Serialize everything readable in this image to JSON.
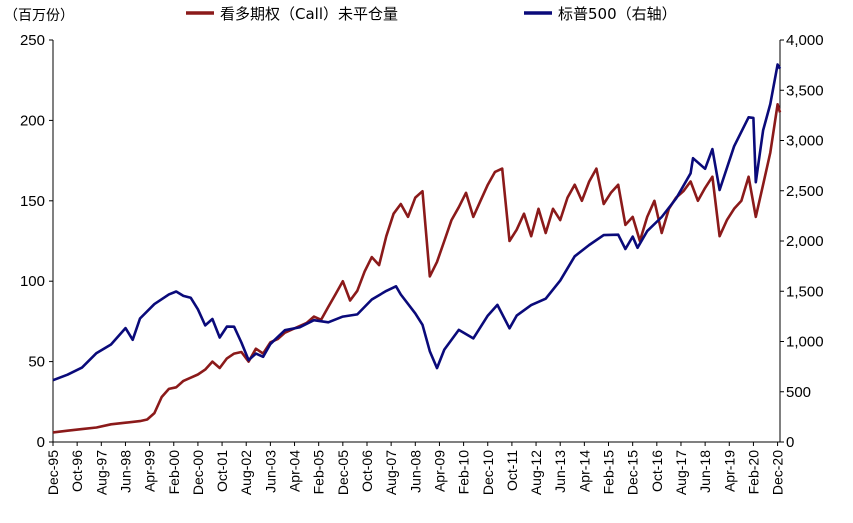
{
  "chart_data": {
    "type": "line",
    "unit_label": "（百万份）",
    "series": [
      {
        "name": "看多期权（Call）未平仓量",
        "axis": "left",
        "color": "#8B1A1A",
        "points": [
          [
            "1995-12",
            6
          ],
          [
            "1996-06",
            7
          ],
          [
            "1996-12",
            8
          ],
          [
            "1997-06",
            9
          ],
          [
            "1997-12",
            11
          ],
          [
            "1998-06",
            12
          ],
          [
            "1998-12",
            13
          ],
          [
            "1999-03",
            14
          ],
          [
            "1999-06",
            18
          ],
          [
            "1999-09",
            28
          ],
          [
            "1999-12",
            33
          ],
          [
            "2000-03",
            34
          ],
          [
            "2000-06",
            38
          ],
          [
            "2000-09",
            40
          ],
          [
            "2000-12",
            42
          ],
          [
            "2001-03",
            45
          ],
          [
            "2001-06",
            50
          ],
          [
            "2001-09",
            46
          ],
          [
            "2001-12",
            52
          ],
          [
            "2002-03",
            55
          ],
          [
            "2002-06",
            56
          ],
          [
            "2002-09",
            50
          ],
          [
            "2002-12",
            58
          ],
          [
            "2003-03",
            55
          ],
          [
            "2003-06",
            62
          ],
          [
            "2003-09",
            64
          ],
          [
            "2003-12",
            68
          ],
          [
            "2004-03",
            70
          ],
          [
            "2004-06",
            72
          ],
          [
            "2004-09",
            74
          ],
          [
            "2004-12",
            78
          ],
          [
            "2005-03",
            76
          ],
          [
            "2005-06",
            84
          ],
          [
            "2005-09",
            92
          ],
          [
            "2005-12",
            100
          ],
          [
            "2006-03",
            88
          ],
          [
            "2006-06",
            94
          ],
          [
            "2006-09",
            106
          ],
          [
            "2006-12",
            115
          ],
          [
            "2007-03",
            110
          ],
          [
            "2007-06",
            128
          ],
          [
            "2007-09",
            142
          ],
          [
            "2007-12",
            148
          ],
          [
            "2008-03",
            140
          ],
          [
            "2008-06",
            152
          ],
          [
            "2008-09",
            156
          ],
          [
            "2008-12",
            103
          ],
          [
            "2009-03",
            112
          ],
          [
            "2009-06",
            125
          ],
          [
            "2009-09",
            138
          ],
          [
            "2009-12",
            146
          ],
          [
            "2010-03",
            155
          ],
          [
            "2010-06",
            140
          ],
          [
            "2010-09",
            150
          ],
          [
            "2010-12",
            160
          ],
          [
            "2011-03",
            168
          ],
          [
            "2011-06",
            170
          ],
          [
            "2011-09",
            125
          ],
          [
            "2011-12",
            132
          ],
          [
            "2012-03",
            142
          ],
          [
            "2012-06",
            128
          ],
          [
            "2012-09",
            145
          ],
          [
            "2012-12",
            130
          ],
          [
            "2013-03",
            145
          ],
          [
            "2013-06",
            138
          ],
          [
            "2013-09",
            152
          ],
          [
            "2013-12",
            160
          ],
          [
            "2014-03",
            150
          ],
          [
            "2014-06",
            162
          ],
          [
            "2014-09",
            170
          ],
          [
            "2014-12",
            148
          ],
          [
            "2015-03",
            155
          ],
          [
            "2015-06",
            160
          ],
          [
            "2015-09",
            135
          ],
          [
            "2015-12",
            140
          ],
          [
            "2016-03",
            125
          ],
          [
            "2016-06",
            140
          ],
          [
            "2016-09",
            150
          ],
          [
            "2016-12",
            130
          ],
          [
            "2017-03",
            145
          ],
          [
            "2017-06",
            152
          ],
          [
            "2017-09",
            156
          ],
          [
            "2017-12",
            162
          ],
          [
            "2018-03",
            150
          ],
          [
            "2018-06",
            158
          ],
          [
            "2018-09",
            165
          ],
          [
            "2018-12",
            128
          ],
          [
            "2019-03",
            138
          ],
          [
            "2019-06",
            145
          ],
          [
            "2019-09",
            150
          ],
          [
            "2019-12",
            165
          ],
          [
            "2020-03",
            140
          ],
          [
            "2020-06",
            160
          ],
          [
            "2020-09",
            180
          ],
          [
            "2020-12",
            210
          ],
          [
            "2021-01",
            205
          ]
        ]
      },
      {
        "name": "标普500（右轴）",
        "axis": "right",
        "color": "#0A0A7A",
        "points": [
          [
            "1995-12",
            615
          ],
          [
            "1996-06",
            670
          ],
          [
            "1996-12",
            740
          ],
          [
            "1997-06",
            885
          ],
          [
            "1997-12",
            970
          ],
          [
            "1998-06",
            1133
          ],
          [
            "1998-09",
            1017
          ],
          [
            "1998-12",
            1229
          ],
          [
            "1999-06",
            1372
          ],
          [
            "1999-12",
            1469
          ],
          [
            "2000-03",
            1498
          ],
          [
            "2000-06",
            1454
          ],
          [
            "2000-09",
            1436
          ],
          [
            "2000-12",
            1320
          ],
          [
            "2001-03",
            1160
          ],
          [
            "2001-06",
            1224
          ],
          [
            "2001-09",
            1040
          ],
          [
            "2001-12",
            1148
          ],
          [
            "2002-03",
            1147
          ],
          [
            "2002-06",
            990
          ],
          [
            "2002-09",
            815
          ],
          [
            "2002-12",
            880
          ],
          [
            "2003-03",
            848
          ],
          [
            "2003-06",
            975
          ],
          [
            "2003-12",
            1112
          ],
          [
            "2004-06",
            1140
          ],
          [
            "2004-12",
            1212
          ],
          [
            "2005-06",
            1191
          ],
          [
            "2005-12",
            1248
          ],
          [
            "2006-06",
            1270
          ],
          [
            "2006-12",
            1418
          ],
          [
            "2007-06",
            1503
          ],
          [
            "2007-10",
            1549
          ],
          [
            "2007-12",
            1468
          ],
          [
            "2008-06",
            1280
          ],
          [
            "2008-09",
            1166
          ],
          [
            "2008-12",
            903
          ],
          [
            "2009-03",
            735
          ],
          [
            "2009-06",
            919
          ],
          [
            "2009-12",
            1115
          ],
          [
            "2010-06",
            1031
          ],
          [
            "2010-12",
            1258
          ],
          [
            "2011-04",
            1364
          ],
          [
            "2011-09",
            1131
          ],
          [
            "2011-12",
            1258
          ],
          [
            "2012-06",
            1362
          ],
          [
            "2012-12",
            1426
          ],
          [
            "2013-06",
            1606
          ],
          [
            "2013-12",
            1848
          ],
          [
            "2014-06",
            1960
          ],
          [
            "2014-12",
            2059
          ],
          [
            "2015-06",
            2063
          ],
          [
            "2015-09",
            1920
          ],
          [
            "2015-12",
            2044
          ],
          [
            "2016-02",
            1932
          ],
          [
            "2016-06",
            2099
          ],
          [
            "2016-12",
            2239
          ],
          [
            "2017-06",
            2423
          ],
          [
            "2017-12",
            2674
          ],
          [
            "2018-01",
            2824
          ],
          [
            "2018-06",
            2718
          ],
          [
            "2018-09",
            2914
          ],
          [
            "2018-12",
            2507
          ],
          [
            "2019-06",
            2942
          ],
          [
            "2019-12",
            3231
          ],
          [
            "2020-02",
            3225
          ],
          [
            "2020-03",
            2585
          ],
          [
            "2020-06",
            3100
          ],
          [
            "2020-09",
            3363
          ],
          [
            "2020-12",
            3756
          ],
          [
            "2021-01",
            3714
          ]
        ]
      }
    ],
    "x_ticks": [
      "Dec-95",
      "Oct-96",
      "Aug-97",
      "Jun-98",
      "Apr-99",
      "Feb-00",
      "Dec-00",
      "Oct-01",
      "Aug-02",
      "Jun-03",
      "Apr-04",
      "Feb-05",
      "Dec-05",
      "Oct-06",
      "Aug-07",
      "Jun-08",
      "Apr-09",
      "Feb-10",
      "Dec-10",
      "Oct-11",
      "Aug-12",
      "Jun-13",
      "Apr-14",
      "Feb-15",
      "Dec-15",
      "Oct-16",
      "Aug-17",
      "Jun-18",
      "Apr-19",
      "Feb-20",
      "Dec-20"
    ],
    "y_left": {
      "ticks": [
        "0",
        "50",
        "100",
        "150",
        "200",
        "250"
      ],
      "range": [
        0,
        250
      ]
    },
    "y_right": {
      "ticks": [
        "0",
        "500",
        "1,000",
        "1,500",
        "2,000",
        "2,500",
        "3,000",
        "3,500",
        "4,000"
      ],
      "range": [
        0,
        4000
      ]
    },
    "x_range": [
      "1995-12",
      "2021-01"
    ],
    "grid": false,
    "legend_position": "top"
  }
}
